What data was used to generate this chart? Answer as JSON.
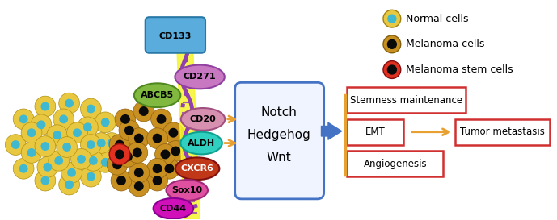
{
  "bg_color": "#ffffff",
  "normal_cell_outer": "#e8c840",
  "normal_cell_inner": "#40b8d0",
  "melanoma_cell_outer": "#c89020",
  "melanoma_cell_inner": "#0a0a0a",
  "stem_cell_outer": "#e03020",
  "stem_cell_inner": "#0a0a0a",
  "arrow_color": "#e8a030",
  "big_arrow_color": "#4472c4",
  "orange_line_color": "#e8a030",
  "box_edge_color": "#d03030",
  "notch_box_color": "#f0f4ff",
  "notch_box_edge": "#4472c4",
  "membrane_purple": "#9040b0",
  "membrane_yellow": "#f0f020",
  "cd133_color": "#5aacdc",
  "cd271_color": "#c878c0",
  "abcb5_color": "#80b840",
  "cd20_color": "#d890b0",
  "aldh_color": "#30d0c0",
  "cxcr6_color": "#c03818",
  "sox10_color": "#e050a0",
  "cd44_color": "#d010b8",
  "legend_items": [
    "Normal cells",
    "Melanoma cells",
    "Melanoma stem cells"
  ],
  "pathways": [
    "Notch",
    "Hedgehog",
    "Wnt"
  ],
  "outcomes": [
    "Stemness maintenance",
    "EMT",
    "Angiogenesis"
  ],
  "final_outcome": "Tumor metastasis"
}
